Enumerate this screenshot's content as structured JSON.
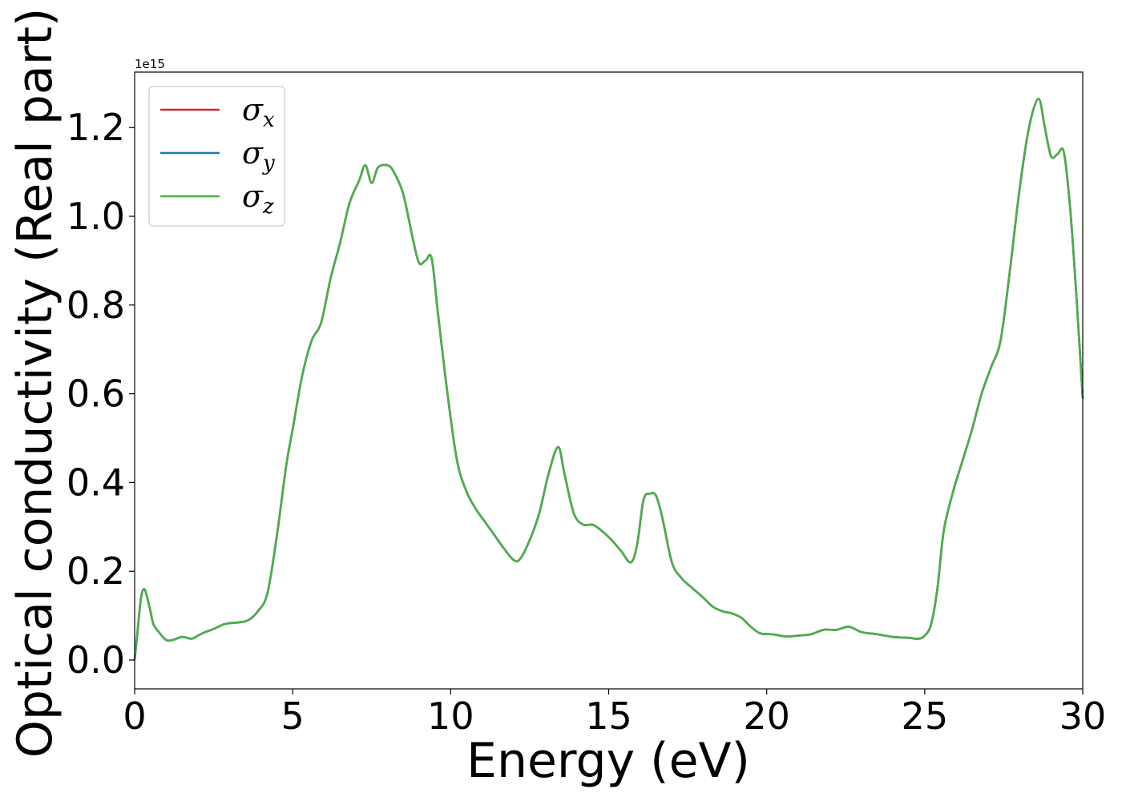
{
  "chart_data": {
    "type": "line",
    "title": "",
    "xlabel": "Energy (eV)",
    "ylabel": "Optical conductivity (Real part)",
    "y_offset_label": "1e15",
    "xlim": [
      0,
      30
    ],
    "ylim": [
      -0.065,
      1.325
    ],
    "y_multiplier": 1000000000000000.0,
    "grid": false,
    "legend_position": "top-left",
    "x_ticks": [
      0,
      5,
      10,
      15,
      20,
      25,
      30
    ],
    "x_tick_labels": [
      "0",
      "5",
      "10",
      "15",
      "20",
      "25",
      "30"
    ],
    "y_ticks": [
      0.0,
      0.2,
      0.4,
      0.6,
      0.8,
      1.0,
      1.2
    ],
    "y_tick_labels": [
      "0.0",
      "0.2",
      "0.4",
      "0.6",
      "0.8",
      "1.0",
      "1.2"
    ],
    "x": [
      0.0,
      0.1,
      0.2,
      0.3,
      0.4,
      0.5,
      0.6,
      0.8,
      1.0,
      1.2,
      1.5,
      1.8,
      2.0,
      2.2,
      2.5,
      2.8,
      3.0,
      3.3,
      3.6,
      3.9,
      4.2,
      4.5,
      4.8,
      5.0,
      5.3,
      5.6,
      5.9,
      6.2,
      6.5,
      6.8,
      7.1,
      7.3,
      7.5,
      7.7,
      8.0,
      8.2,
      8.5,
      8.8,
      9.0,
      9.2,
      9.4,
      9.6,
      9.9,
      10.2,
      10.5,
      10.8,
      11.1,
      11.4,
      11.7,
      12.0,
      12.2,
      12.5,
      12.8,
      13.1,
      13.4,
      13.6,
      13.9,
      14.2,
      14.5,
      14.8,
      15.1,
      15.4,
      15.7,
      15.9,
      16.1,
      16.3,
      16.5,
      16.7,
      17.0,
      17.3,
      17.6,
      18.0,
      18.3,
      18.6,
      18.9,
      19.2,
      19.5,
      19.8,
      20.2,
      20.6,
      21.0,
      21.4,
      21.8,
      22.2,
      22.6,
      23.0,
      23.5,
      24.0,
      24.5,
      24.8,
      25.0,
      25.2,
      25.4,
      25.6,
      25.9,
      26.2,
      26.5,
      26.8,
      27.1,
      27.4,
      27.7,
      28.0,
      28.3,
      28.6,
      28.8,
      29.0,
      29.2,
      29.4,
      29.6,
      29.8,
      30.0
    ],
    "series": [
      {
        "name": "σx",
        "label_base": "σ",
        "label_sub": "x",
        "color": "#d62728"
      },
      {
        "name": "σy",
        "label_base": "σ",
        "label_sub": "y",
        "color": "#1f77b4"
      },
      {
        "name": "σz",
        "label_base": "σ",
        "label_sub": "z",
        "color": "#4daf4a"
      }
    ],
    "values": [
      0.0,
      0.07,
      0.14,
      0.16,
      0.14,
      0.11,
      0.08,
      0.06,
      0.045,
      0.045,
      0.052,
      0.048,
      0.055,
      0.062,
      0.07,
      0.08,
      0.083,
      0.085,
      0.09,
      0.11,
      0.15,
      0.28,
      0.44,
      0.52,
      0.64,
      0.72,
      0.76,
      0.86,
      0.94,
      1.03,
      1.08,
      1.115,
      1.075,
      1.11,
      1.115,
      1.1,
      1.05,
      0.95,
      0.895,
      0.9,
      0.905,
      0.78,
      0.6,
      0.45,
      0.38,
      0.34,
      0.31,
      0.28,
      0.25,
      0.225,
      0.228,
      0.27,
      0.33,
      0.42,
      0.48,
      0.42,
      0.33,
      0.305,
      0.305,
      0.29,
      0.27,
      0.245,
      0.22,
      0.26,
      0.36,
      0.375,
      0.37,
      0.32,
      0.22,
      0.185,
      0.165,
      0.14,
      0.12,
      0.11,
      0.105,
      0.095,
      0.075,
      0.06,
      0.058,
      0.053,
      0.055,
      0.058,
      0.068,
      0.068,
      0.075,
      0.063,
      0.058,
      0.052,
      0.05,
      0.048,
      0.055,
      0.08,
      0.16,
      0.29,
      0.38,
      0.45,
      0.52,
      0.6,
      0.66,
      0.72,
      0.88,
      1.06,
      1.2,
      1.265,
      1.2,
      1.135,
      1.14,
      1.145,
      1.02,
      0.82,
      0.59
    ]
  }
}
